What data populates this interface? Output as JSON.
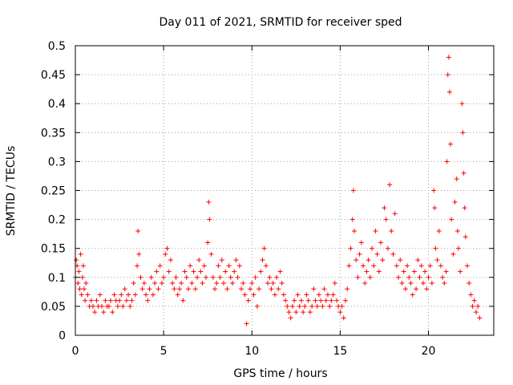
{
  "chart_data": {
    "type": "scatter",
    "title": "Day 011 of 2021, SRMTID for receiver sped",
    "xlabel": "GPS time / hours",
    "ylabel": "SRMTID / TECUs",
    "xlim": [
      0,
      23.7
    ],
    "ylim": [
      0,
      0.5
    ],
    "xticks": [
      0,
      5,
      10,
      15,
      20
    ],
    "xtick_labels": [
      "0",
      "5",
      "10",
      "15",
      "20"
    ],
    "yticks": [
      0,
      0.05,
      0.1,
      0.15,
      0.2,
      0.25,
      0.3,
      0.35,
      0.4,
      0.45,
      0.5
    ],
    "ytick_labels": [
      "0",
      "0.05",
      "0.1",
      "0.15",
      "0.2",
      "0.25",
      "0.3",
      "0.35",
      "0.4",
      "0.45",
      "0.5"
    ],
    "grid": true,
    "marker": "+",
    "marker_color": "#ff0000",
    "series": [
      {
        "name": "SRMTID",
        "color": "#ff0000",
        "points": [
          [
            0.0,
            0.1
          ],
          [
            0.05,
            0.13
          ],
          [
            0.1,
            0.12
          ],
          [
            0.15,
            0.09
          ],
          [
            0.2,
            0.11
          ],
          [
            0.25,
            0.08
          ],
          [
            0.3,
            0.14
          ],
          [
            0.35,
            0.07
          ],
          [
            0.4,
            0.1
          ],
          [
            0.45,
            0.12
          ],
          [
            0.5,
            0.08
          ],
          [
            0.55,
            0.06
          ],
          [
            0.6,
            0.09
          ],
          [
            0.7,
            0.07
          ],
          [
            0.8,
            0.05
          ],
          [
            0.9,
            0.06
          ],
          [
            1.0,
            0.05
          ],
          [
            1.1,
            0.04
          ],
          [
            1.2,
            0.06
          ],
          [
            1.3,
            0.05
          ],
          [
            1.4,
            0.07
          ],
          [
            1.5,
            0.05
          ],
          [
            1.6,
            0.04
          ],
          [
            1.7,
            0.06
          ],
          [
            1.8,
            0.05
          ],
          [
            1.9,
            0.05
          ],
          [
            2.0,
            0.06
          ],
          [
            2.1,
            0.04
          ],
          [
            2.2,
            0.07
          ],
          [
            2.3,
            0.06
          ],
          [
            2.4,
            0.05
          ],
          [
            2.5,
            0.06
          ],
          [
            2.6,
            0.07
          ],
          [
            2.7,
            0.05
          ],
          [
            2.8,
            0.08
          ],
          [
            2.9,
            0.06
          ],
          [
            3.0,
            0.07
          ],
          [
            3.1,
            0.05
          ],
          [
            3.2,
            0.06
          ],
          [
            3.3,
            0.09
          ],
          [
            3.4,
            0.07
          ],
          [
            3.5,
            0.12
          ],
          [
            3.55,
            0.18
          ],
          [
            3.6,
            0.14
          ],
          [
            3.7,
            0.1
          ],
          [
            3.8,
            0.08
          ],
          [
            3.9,
            0.09
          ],
          [
            4.0,
            0.07
          ],
          [
            4.1,
            0.06
          ],
          [
            4.2,
            0.08
          ],
          [
            4.3,
            0.1
          ],
          [
            4.4,
            0.07
          ],
          [
            4.5,
            0.09
          ],
          [
            4.6,
            0.11
          ],
          [
            4.7,
            0.08
          ],
          [
            4.8,
            0.12
          ],
          [
            4.9,
            0.09
          ],
          [
            5.0,
            0.1
          ],
          [
            5.1,
            0.14
          ],
          [
            5.2,
            0.15
          ],
          [
            5.3,
            0.11
          ],
          [
            5.4,
            0.13
          ],
          [
            5.5,
            0.09
          ],
          [
            5.6,
            0.08
          ],
          [
            5.7,
            0.1
          ],
          [
            5.8,
            0.07
          ],
          [
            5.9,
            0.08
          ],
          [
            6.0,
            0.09
          ],
          [
            6.1,
            0.06
          ],
          [
            6.2,
            0.11
          ],
          [
            6.3,
            0.1
          ],
          [
            6.4,
            0.08
          ],
          [
            6.5,
            0.12
          ],
          [
            6.6,
            0.09
          ],
          [
            6.7,
            0.11
          ],
          [
            6.8,
            0.08
          ],
          [
            6.9,
            0.1
          ],
          [
            7.0,
            0.13
          ],
          [
            7.1,
            0.11
          ],
          [
            7.2,
            0.09
          ],
          [
            7.3,
            0.12
          ],
          [
            7.4,
            0.1
          ],
          [
            7.5,
            0.16
          ],
          [
            7.55,
            0.23
          ],
          [
            7.6,
            0.2
          ],
          [
            7.7,
            0.14
          ],
          [
            7.8,
            0.1
          ],
          [
            7.9,
            0.08
          ],
          [
            8.0,
            0.09
          ],
          [
            8.1,
            0.12
          ],
          [
            8.2,
            0.1
          ],
          [
            8.3,
            0.13
          ],
          [
            8.4,
            0.09
          ],
          [
            8.5,
            0.11
          ],
          [
            8.6,
            0.08
          ],
          [
            8.7,
            0.12
          ],
          [
            8.8,
            0.1
          ],
          [
            8.9,
            0.09
          ],
          [
            9.0,
            0.11
          ],
          [
            9.1,
            0.13
          ],
          [
            9.2,
            0.1
          ],
          [
            9.3,
            0.12
          ],
          [
            9.4,
            0.08
          ],
          [
            9.5,
            0.09
          ],
          [
            9.6,
            0.07
          ],
          [
            9.7,
            0.02
          ],
          [
            9.8,
            0.06
          ],
          [
            9.9,
            0.08
          ],
          [
            10.0,
            0.09
          ],
          [
            10.1,
            0.07
          ],
          [
            10.2,
            0.1
          ],
          [
            10.3,
            0.05
          ],
          [
            10.4,
            0.08
          ],
          [
            10.5,
            0.11
          ],
          [
            10.6,
            0.13
          ],
          [
            10.7,
            0.15
          ],
          [
            10.8,
            0.12
          ],
          [
            10.9,
            0.09
          ],
          [
            11.0,
            0.1
          ],
          [
            11.1,
            0.08
          ],
          [
            11.2,
            0.09
          ],
          [
            11.3,
            0.07
          ],
          [
            11.4,
            0.1
          ],
          [
            11.5,
            0.08
          ],
          [
            11.6,
            0.11
          ],
          [
            11.7,
            0.09
          ],
          [
            11.8,
            0.07
          ],
          [
            11.9,
            0.06
          ],
          [
            12.0,
            0.05
          ],
          [
            12.1,
            0.04
          ],
          [
            12.2,
            0.03
          ],
          [
            12.3,
            0.05
          ],
          [
            12.4,
            0.06
          ],
          [
            12.5,
            0.04
          ],
          [
            12.6,
            0.07
          ],
          [
            12.7,
            0.05
          ],
          [
            12.8,
            0.06
          ],
          [
            12.9,
            0.04
          ],
          [
            13.0,
            0.05
          ],
          [
            13.1,
            0.07
          ],
          [
            13.2,
            0.06
          ],
          [
            13.3,
            0.04
          ],
          [
            13.4,
            0.05
          ],
          [
            13.5,
            0.08
          ],
          [
            13.6,
            0.06
          ],
          [
            13.7,
            0.05
          ],
          [
            13.8,
            0.07
          ],
          [
            13.9,
            0.06
          ],
          [
            14.0,
            0.05
          ],
          [
            14.1,
            0.08
          ],
          [
            14.2,
            0.06
          ],
          [
            14.3,
            0.07
          ],
          [
            14.4,
            0.05
          ],
          [
            14.5,
            0.06
          ],
          [
            14.6,
            0.07
          ],
          [
            14.7,
            0.09
          ],
          [
            14.8,
            0.06
          ],
          [
            14.9,
            0.05
          ],
          [
            15.0,
            0.04
          ],
          [
            15.1,
            0.05
          ],
          [
            15.2,
            0.03
          ],
          [
            15.3,
            0.06
          ],
          [
            15.4,
            0.08
          ],
          [
            15.5,
            0.12
          ],
          [
            15.6,
            0.15
          ],
          [
            15.7,
            0.2
          ],
          [
            15.75,
            0.25
          ],
          [
            15.8,
            0.18
          ],
          [
            15.9,
            0.13
          ],
          [
            16.0,
            0.1
          ],
          [
            16.1,
            0.14
          ],
          [
            16.2,
            0.16
          ],
          [
            16.3,
            0.12
          ],
          [
            16.4,
            0.09
          ],
          [
            16.5,
            0.11
          ],
          [
            16.6,
            0.13
          ],
          [
            16.7,
            0.1
          ],
          [
            16.8,
            0.15
          ],
          [
            16.9,
            0.12
          ],
          [
            17.0,
            0.18
          ],
          [
            17.1,
            0.14
          ],
          [
            17.2,
            0.11
          ],
          [
            17.3,
            0.16
          ],
          [
            17.4,
            0.13
          ],
          [
            17.5,
            0.22
          ],
          [
            17.6,
            0.2
          ],
          [
            17.7,
            0.15
          ],
          [
            17.8,
            0.26
          ],
          [
            17.9,
            0.18
          ],
          [
            18.0,
            0.14
          ],
          [
            18.1,
            0.21
          ],
          [
            18.2,
            0.12
          ],
          [
            18.3,
            0.1
          ],
          [
            18.4,
            0.13
          ],
          [
            18.5,
            0.09
          ],
          [
            18.6,
            0.11
          ],
          [
            18.7,
            0.08
          ],
          [
            18.8,
            0.12
          ],
          [
            18.9,
            0.1
          ],
          [
            19.0,
            0.09
          ],
          [
            19.1,
            0.07
          ],
          [
            19.2,
            0.11
          ],
          [
            19.3,
            0.08
          ],
          [
            19.4,
            0.13
          ],
          [
            19.5,
            0.1
          ],
          [
            19.6,
            0.12
          ],
          [
            19.7,
            0.09
          ],
          [
            19.8,
            0.11
          ],
          [
            19.9,
            0.08
          ],
          [
            20.0,
            0.1
          ],
          [
            20.1,
            0.12
          ],
          [
            20.2,
            0.09
          ],
          [
            20.3,
            0.25
          ],
          [
            20.35,
            0.22
          ],
          [
            20.4,
            0.15
          ],
          [
            20.5,
            0.13
          ],
          [
            20.6,
            0.18
          ],
          [
            20.7,
            0.12
          ],
          [
            20.8,
            0.1
          ],
          [
            20.9,
            0.09
          ],
          [
            21.0,
            0.11
          ],
          [
            21.05,
            0.3
          ],
          [
            21.1,
            0.45
          ],
          [
            21.15,
            0.48
          ],
          [
            21.2,
            0.42
          ],
          [
            21.25,
            0.33
          ],
          [
            21.3,
            0.2
          ],
          [
            21.4,
            0.14
          ],
          [
            21.5,
            0.23
          ],
          [
            21.6,
            0.27
          ],
          [
            21.65,
            0.18
          ],
          [
            21.7,
            0.15
          ],
          [
            21.8,
            0.11
          ],
          [
            21.9,
            0.4
          ],
          [
            21.95,
            0.35
          ],
          [
            22.0,
            0.28
          ],
          [
            22.05,
            0.22
          ],
          [
            22.1,
            0.17
          ],
          [
            22.2,
            0.12
          ],
          [
            22.3,
            0.09
          ],
          [
            22.4,
            0.07
          ],
          [
            22.5,
            0.05
          ],
          [
            22.6,
            0.06
          ],
          [
            22.7,
            0.04
          ],
          [
            22.8,
            0.05
          ],
          [
            22.9,
            0.03
          ]
        ]
      }
    ]
  }
}
